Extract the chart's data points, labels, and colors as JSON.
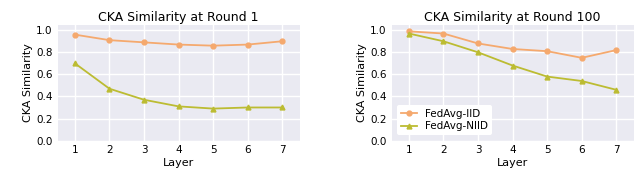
{
  "layers": [
    1,
    2,
    3,
    4,
    5,
    6,
    7
  ],
  "round1_iid": [
    0.96,
    0.91,
    0.89,
    0.87,
    0.86,
    0.87,
    0.9
  ],
  "round1_niid": [
    0.7,
    0.47,
    0.37,
    0.31,
    0.29,
    0.3,
    0.3
  ],
  "round100_iid": [
    0.99,
    0.97,
    0.88,
    0.83,
    0.81,
    0.75,
    0.82
  ],
  "round100_niid": [
    0.97,
    0.9,
    0.8,
    0.68,
    0.58,
    0.54,
    0.46
  ],
  "iid_color": "#f5a96e",
  "niid_color": "#bcbc32",
  "title1": "CKA Similarity at Round 1",
  "title2": "CKA Similarity at Round 100",
  "xlabel": "Layer",
  "ylabel": "CKA Similarity",
  "ylim": [
    0.0,
    1.05
  ],
  "yticks": [
    0.0,
    0.2,
    0.4,
    0.6,
    0.8,
    1.0
  ],
  "legend_iid": "FedAvg-IID",
  "legend_niid": "FedAvg-NIID",
  "title_fontsize": 9,
  "label_fontsize": 8,
  "tick_fontsize": 7.5,
  "legend_fontsize": 7.5,
  "bg_color": "#eaeaf2",
  "grid_color": "#ffffff",
  "figure_bg": "#ffffff"
}
